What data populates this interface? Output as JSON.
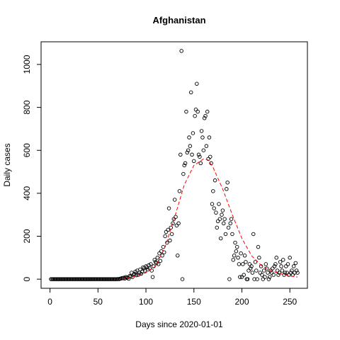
{
  "chart_data": {
    "type": "scatter",
    "title": "Afghanistan",
    "x_label": "Days since 2020-01-01",
    "y_label": "Daily cases",
    "xlim": [
      -9.3,
      268.3
    ],
    "ylim": [
      -42.5,
      1105.5
    ],
    "xticks": [
      0,
      50,
      100,
      150,
      200,
      250
    ],
    "yticks": [
      0,
      200,
      400,
      600,
      800,
      1000
    ],
    "series": [
      {
        "kind": "points",
        "color": "#000000",
        "x": [
          1,
          2,
          3,
          4,
          5,
          6,
          7,
          8,
          9,
          10,
          11,
          12,
          13,
          14,
          15,
          16,
          17,
          18,
          19,
          20,
          21,
          22,
          23,
          24,
          25,
          26,
          27,
          28,
          29,
          30,
          31,
          32,
          33,
          34,
          35,
          36,
          37,
          38,
          39,
          40,
          41,
          42,
          43,
          44,
          45,
          46,
          47,
          48,
          49,
          50,
          51,
          52,
          53,
          54,
          55,
          56,
          57,
          58,
          59,
          60,
          61,
          62,
          63,
          64,
          65,
          66,
          67,
          68,
          69,
          70,
          71,
          72,
          73,
          74,
          75,
          76,
          77,
          78,
          79,
          80,
          81,
          82,
          83,
          84,
          85,
          86,
          87,
          88,
          89,
          90,
          91,
          92,
          93,
          94,
          95,
          96,
          97,
          98,
          99,
          100,
          101,
          102,
          103,
          104,
          105,
          106,
          107,
          108,
          109,
          110,
          111,
          112,
          113,
          114,
          115,
          116,
          117,
          118,
          119,
          120,
          121,
          122,
          123,
          124,
          125,
          126,
          127,
          128,
          129,
          130,
          131,
          132,
          133,
          134,
          135,
          136,
          137,
          138,
          139,
          140,
          141,
          142,
          143,
          144,
          145,
          146,
          147,
          148,
          149,
          150,
          151,
          152,
          153,
          154,
          155,
          156,
          157,
          158,
          159,
          160,
          161,
          162,
          163,
          164,
          165,
          166,
          167,
          168,
          169,
          170,
          171,
          172,
          173,
          174,
          175,
          176,
          177,
          178,
          179,
          180,
          181,
          182,
          183,
          184,
          185,
          186,
          187,
          188,
          189,
          190,
          191,
          192,
          193,
          194,
          195,
          196,
          197,
          198,
          199,
          200,
          201,
          202,
          203,
          204,
          205,
          206,
          207,
          208,
          209,
          210,
          211,
          212,
          213,
          214,
          215,
          216,
          217,
          218,
          219,
          220,
          221,
          222,
          223,
          224,
          225,
          226,
          227,
          228,
          229,
          230,
          231,
          232,
          233,
          234,
          235,
          236,
          237,
          238,
          239,
          240,
          241,
          242,
          243,
          244,
          245,
          246,
          247,
          248,
          249,
          250,
          251,
          252,
          253,
          254,
          255,
          256,
          257,
          258
        ],
        "values": [
          0,
          0,
          0,
          0,
          0,
          0,
          0,
          0,
          0,
          0,
          0,
          0,
          0,
          0,
          0,
          0,
          0,
          0,
          0,
          0,
          0,
          0,
          0,
          0,
          0,
          0,
          0,
          0,
          0,
          0,
          0,
          0,
          0,
          0,
          0,
          0,
          0,
          0,
          0,
          0,
          0,
          0,
          0,
          0,
          0,
          0,
          0,
          0,
          0,
          0,
          0,
          0,
          0,
          0,
          0,
          0,
          0,
          0,
          0,
          0,
          0,
          0,
          0,
          0,
          0,
          0,
          0,
          0,
          0,
          0,
          1,
          0,
          2,
          3,
          5,
          4,
          7,
          3,
          10,
          6,
          8,
          2,
          15,
          12,
          30,
          10,
          20,
          25,
          35,
          18,
          40,
          20,
          30,
          45,
          25,
          35,
          55,
          50,
          40,
          60,
          55,
          45,
          65,
          50,
          70,
          40,
          10,
          60,
          90,
          80,
          75,
          100,
          70,
          120,
          85,
          130,
          110,
          150,
          125,
          200,
          220,
          170,
          230,
          330,
          180,
          240,
          210,
          260,
          280,
          370,
          290,
          250,
          110,
          260,
          410,
          580,
          1063,
          0,
          490,
          530,
          540,
          780,
          590,
          600,
          660,
          620,
          870,
          580,
          680,
          550,
          760,
          790,
          910,
          780,
          580,
          570,
          540,
          690,
          660,
          600,
          750,
          760,
          620,
          780,
          560,
          660,
          570,
          540,
          350,
          410,
          330,
          460,
          310,
          240,
          270,
          350,
          280,
          190,
          300,
          320,
          260,
          280,
          210,
          420,
          450,
          240,
          0,
          260,
          280,
          210,
          90,
          110,
          170,
          130,
          150,
          100,
          70,
          10,
          120,
          10,
          70,
          20,
          110,
          80,
          0,
          0,
          40,
          70,
          50,
          60,
          30,
          210,
          0,
          80,
          40,
          0,
          150,
          100,
          30,
          60,
          20,
          0,
          40,
          10,
          70,
          50,
          30,
          0,
          10,
          40,
          30,
          50,
          20,
          60,
          70,
          100,
          40,
          20,
          30,
          80,
          60,
          40,
          90,
          20,
          30,
          60,
          30,
          70,
          20,
          100,
          30,
          40,
          20,
          60,
          30,
          75,
          40,
          30
        ]
      },
      {
        "kind": "line",
        "color": "#ff0000",
        "dash": "dashed",
        "x": [
          75,
          80,
          90,
          100,
          110,
          120,
          130,
          140,
          150,
          160,
          165,
          170,
          180,
          190,
          200,
          210,
          220,
          230,
          240,
          250,
          258
        ],
        "values": [
          0,
          5,
          15,
          30,
          60,
          150,
          290,
          440,
          530,
          560,
          555,
          520,
          420,
          300,
          190,
          110,
          65,
          40,
          25,
          15,
          10
        ]
      }
    ]
  }
}
